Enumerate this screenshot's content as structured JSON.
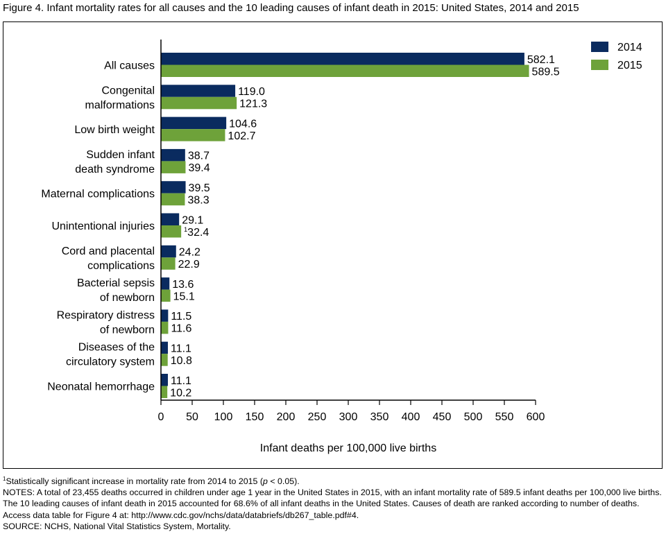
{
  "title": "Figure 4. Infant mortality rates for all causes and the 10 leading causes of infant death in 2015: United States, 2014 and 2015",
  "colors": {
    "series_2014": "#0a2b5f",
    "series_2015": "#6ea23a"
  },
  "chart_data": {
    "type": "bar",
    "orientation": "horizontal",
    "categories": [
      [
        "All causes"
      ],
      [
        "Congenital",
        "malformations"
      ],
      [
        "Low birth weight"
      ],
      [
        "Sudden infant",
        "death syndrome"
      ],
      [
        "Maternal complications"
      ],
      [
        "Unintentional injuries"
      ],
      [
        "Cord and placental",
        "complications"
      ],
      [
        "Bacterial sepsis",
        "of newborn"
      ],
      [
        "Respiratory distress",
        "of newborn"
      ],
      [
        "Diseases of the",
        "circulatory system"
      ],
      [
        "Neonatal hemorrhage"
      ]
    ],
    "series": [
      {
        "name": "2014",
        "values": [
          582.1,
          119.0,
          104.6,
          38.7,
          39.5,
          29.1,
          24.2,
          13.6,
          11.5,
          11.1,
          11.1
        ]
      },
      {
        "name": "2015",
        "values": [
          589.5,
          121.3,
          102.7,
          39.4,
          38.3,
          32.4,
          22.9,
          15.1,
          11.6,
          10.8,
          10.2
        ]
      }
    ],
    "value_labels": [
      [
        "582.1",
        "119.0",
        "104.6",
        "38.7",
        "39.5",
        "29.1",
        "24.2",
        "13.6",
        "11.5",
        "11.1",
        "11.1"
      ],
      [
        "589.5",
        "121.3",
        "102.7",
        "39.4",
        "38.3",
        "32.4",
        "22.9",
        "15.1",
        "11.6",
        "10.8",
        "10.2"
      ]
    ],
    "significance_marker": "1",
    "significant": [
      {
        "series": 1,
        "index": 5
      }
    ],
    "xlabel": "Infant deaths per 100,000 live births",
    "xlim": [
      0,
      600
    ],
    "xticks": [
      0,
      50,
      100,
      150,
      200,
      250,
      300,
      350,
      400,
      450,
      500,
      550,
      600
    ],
    "legend_position": "top-right",
    "grid": false
  },
  "notes": {
    "footnote_marker": "1",
    "footnote_text": "Statistically significant increase in mortality rate from 2014 to 2015 (",
    "footnote_p": "p",
    "footnote_rest": " < 0.05).",
    "notes_text": "NOTES: A total of 23,455 deaths occurred in children under age 1 year in the United States in 2015, with an infant mortality rate of 589.5 infant deaths per 100,000 live births. The 10 leading causes of infant death in 2015 accounted for 68.6% of all infant deaths in the United States. Causes of death are ranked according to number of deaths. Access data table for Figure 4 at: http://www.cdc.gov/nchs/data/databriefs/db267_table.pdf#4.",
    "source_text": "SOURCE: NCHS, National Vital Statistics System, Mortality."
  }
}
